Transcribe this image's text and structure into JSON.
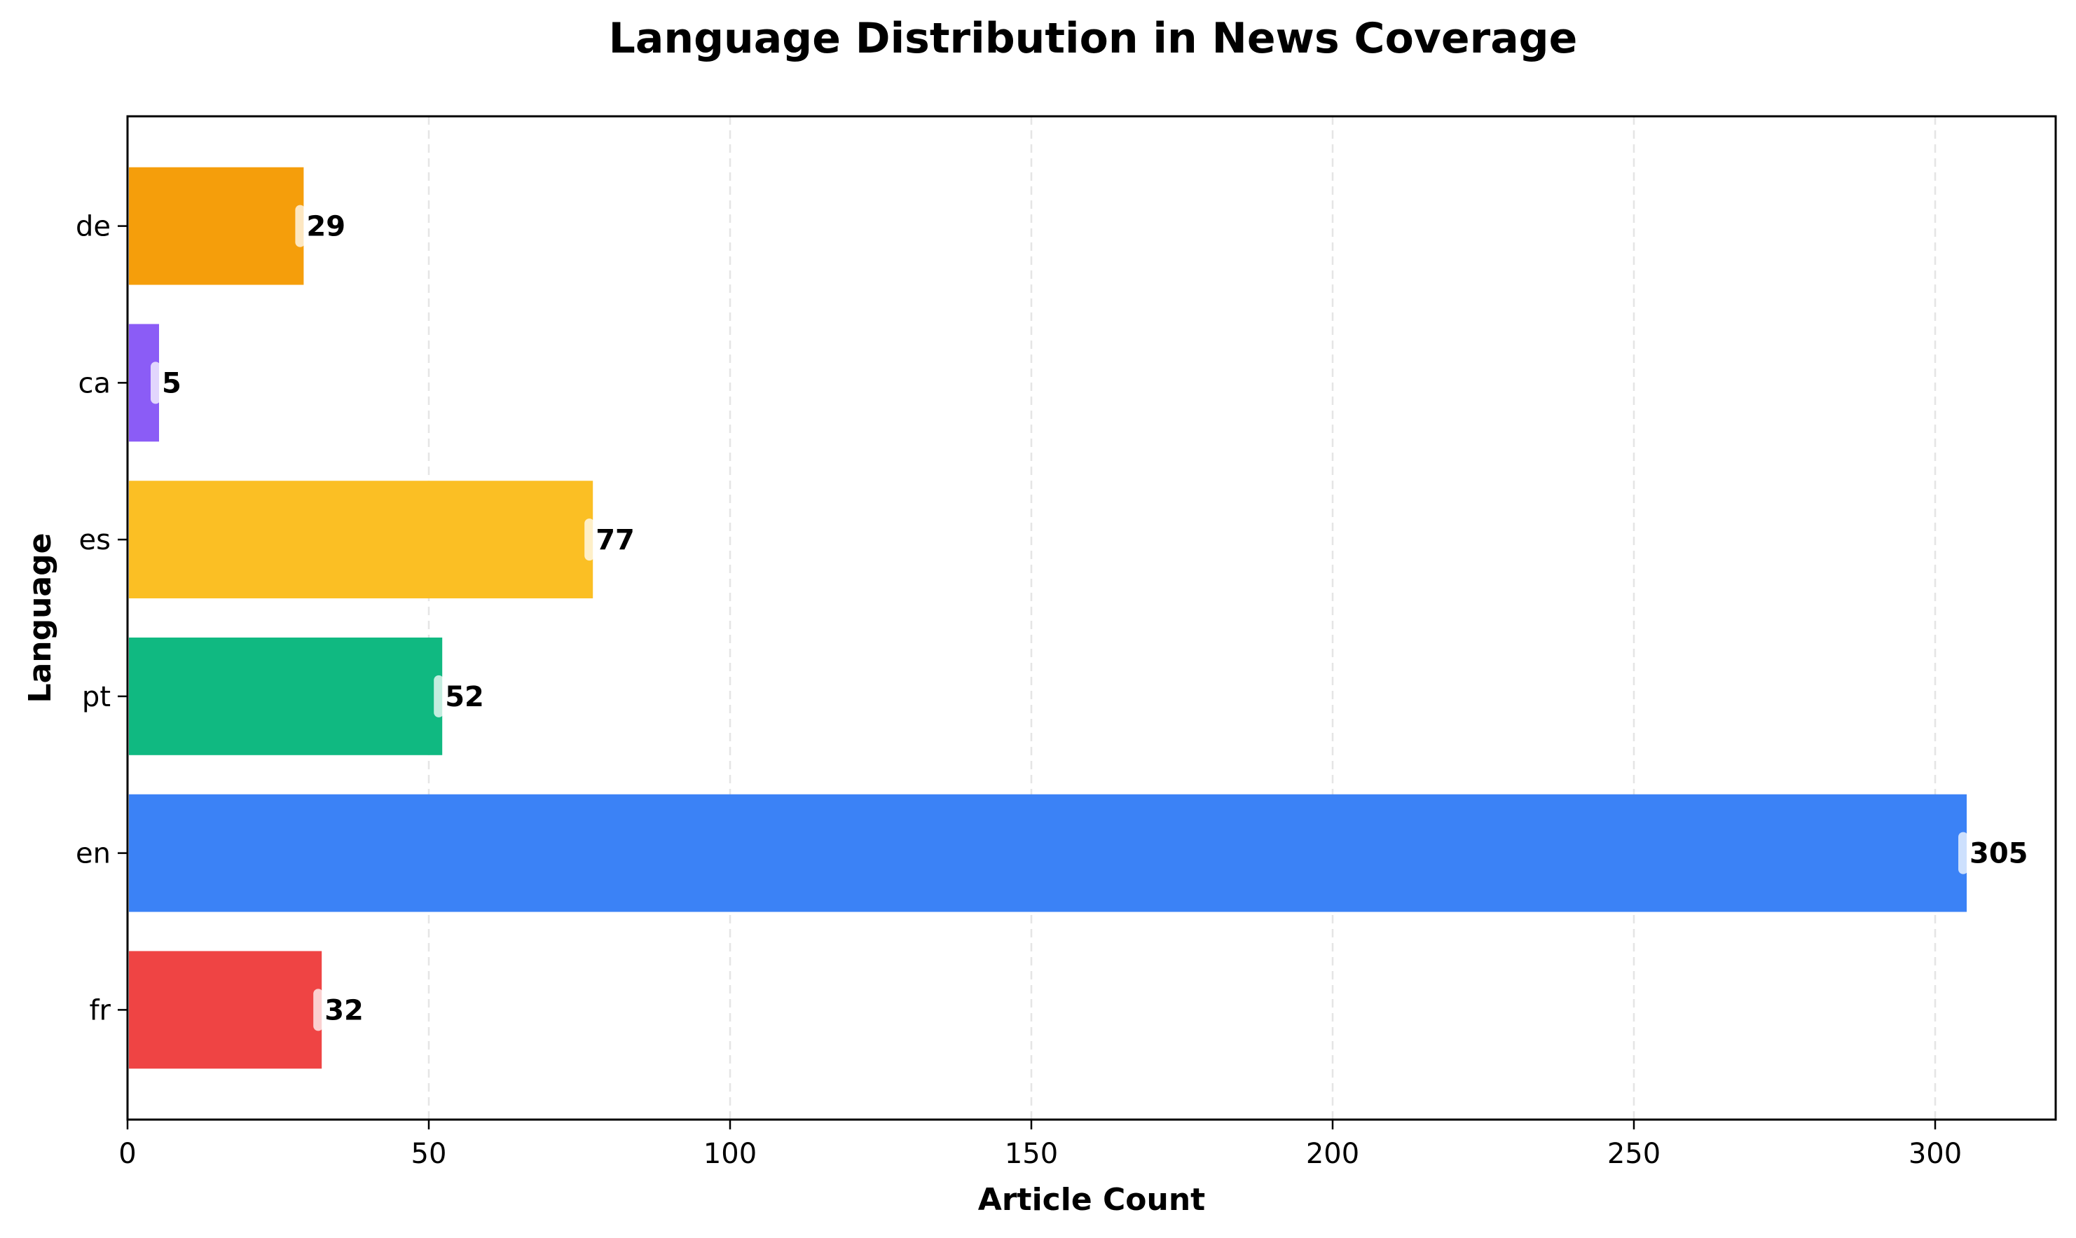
{
  "chart_data": {
    "type": "bar",
    "orientation": "horizontal",
    "title": "Language Distribution in News Coverage",
    "xlabel": "Article Count",
    "ylabel": "Language",
    "categories": [
      "fr",
      "en",
      "pt",
      "es",
      "ca",
      "de"
    ],
    "values": [
      32,
      305,
      52,
      77,
      5,
      29
    ],
    "colors": [
      "#ef4444",
      "#3b82f6",
      "#10b981",
      "#fbbf24",
      "#8b5cf6",
      "#f59e0b"
    ],
    "data_labels": [
      "32",
      "305",
      "52",
      "77",
      "5",
      "29"
    ],
    "xlim": [
      0,
      320
    ],
    "xticks": [
      0,
      50,
      100,
      150,
      200,
      250,
      300
    ],
    "grid": {
      "x": true,
      "y": false,
      "style": "dashed"
    },
    "legend": null
  }
}
